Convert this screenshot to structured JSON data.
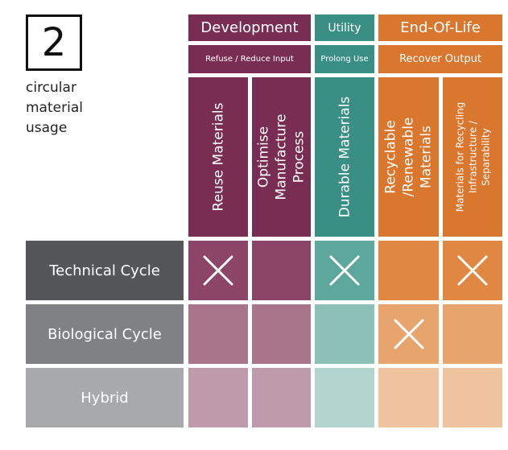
{
  "badge": {
    "number": "2"
  },
  "caption": {
    "lines": [
      "circular",
      "material",
      "usage"
    ]
  },
  "groups": [
    {
      "label": "Development",
      "sublabel": "Refuse / Reduce Input",
      "color": "#7a2d52"
    },
    {
      "label": "Utility",
      "sublabel": "Prolong Use",
      "color": "#3a8f84"
    },
    {
      "label": "End-Of-Life",
      "sublabel": "Recover Output",
      "color": "#d9772f"
    }
  ],
  "columns": [
    {
      "lines": [
        "Reuse Materials"
      ],
      "group": 0
    },
    {
      "lines": [
        "Optimise",
        "Manufacture",
        "Process"
      ],
      "group": 0
    },
    {
      "lines": [
        "Durable Materials"
      ],
      "group": 1
    },
    {
      "lines": [
        "Recyclable",
        "/Renewable",
        "Materials"
      ],
      "group": 2
    },
    {
      "lines": [
        "Materials for Recycling",
        "Infrastructure /",
        "Separability"
      ],
      "group": 2
    }
  ],
  "rows": [
    {
      "label": "Technical Cycle",
      "label_color": "#555659",
      "cells": [
        true,
        false,
        true,
        false,
        true
      ],
      "fills": [
        "#8c4566",
        "#8c4566",
        "#5ea79c",
        "#e08843",
        "#e08843"
      ]
    },
    {
      "label": "Biological Cycle",
      "label_color": "#7f8184",
      "cells": [
        false,
        false,
        false,
        true,
        false
      ],
      "fills": [
        "#a87589",
        "#a87589",
        "#8dc1b8",
        "#e8a46d",
        "#e8a46d"
      ]
    },
    {
      "label": "Hybrid",
      "label_color": "#a7a9ac",
      "cells": [
        false,
        false,
        false,
        false,
        false
      ],
      "fills": [
        "#bf9aab",
        "#bf9aab",
        "#b2d5cf",
        "#f0c39f",
        "#f0c39f"
      ]
    }
  ]
}
